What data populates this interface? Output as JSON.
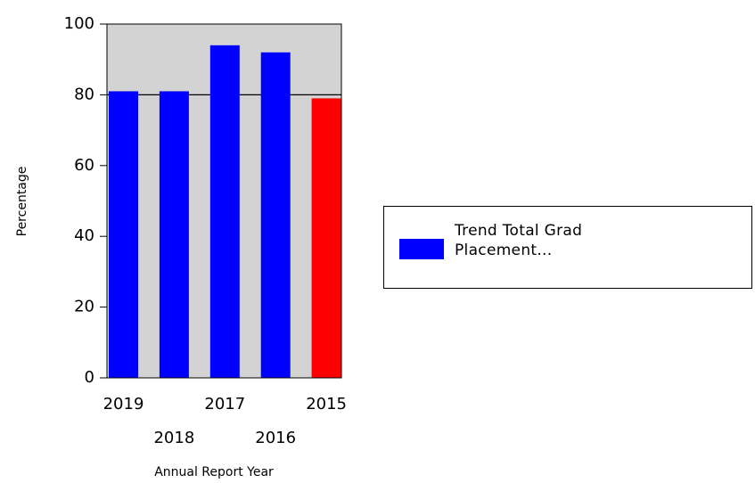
{
  "chart_data": {
    "type": "bar",
    "x_label": "Annual Report Year",
    "y_label": "Percentage",
    "categories": [
      "2019",
      "2018",
      "2017",
      "2016",
      "2015"
    ],
    "series": [
      {
        "name": "Trend Total Grad Placement...",
        "color": "#0000ff",
        "colors": [
          "#0000ff",
          "#0000ff",
          "#0000ff",
          "#0000ff",
          "#ff0000"
        ],
        "values": [
          81,
          81,
          94,
          92,
          79
        ]
      }
    ],
    "ylim": [
      0,
      100
    ],
    "yticks": [
      0,
      20,
      40,
      60,
      80,
      100
    ],
    "reference_line": {
      "value": 80
    },
    "plot_background": "#d3d3d3",
    "legend": "right"
  }
}
